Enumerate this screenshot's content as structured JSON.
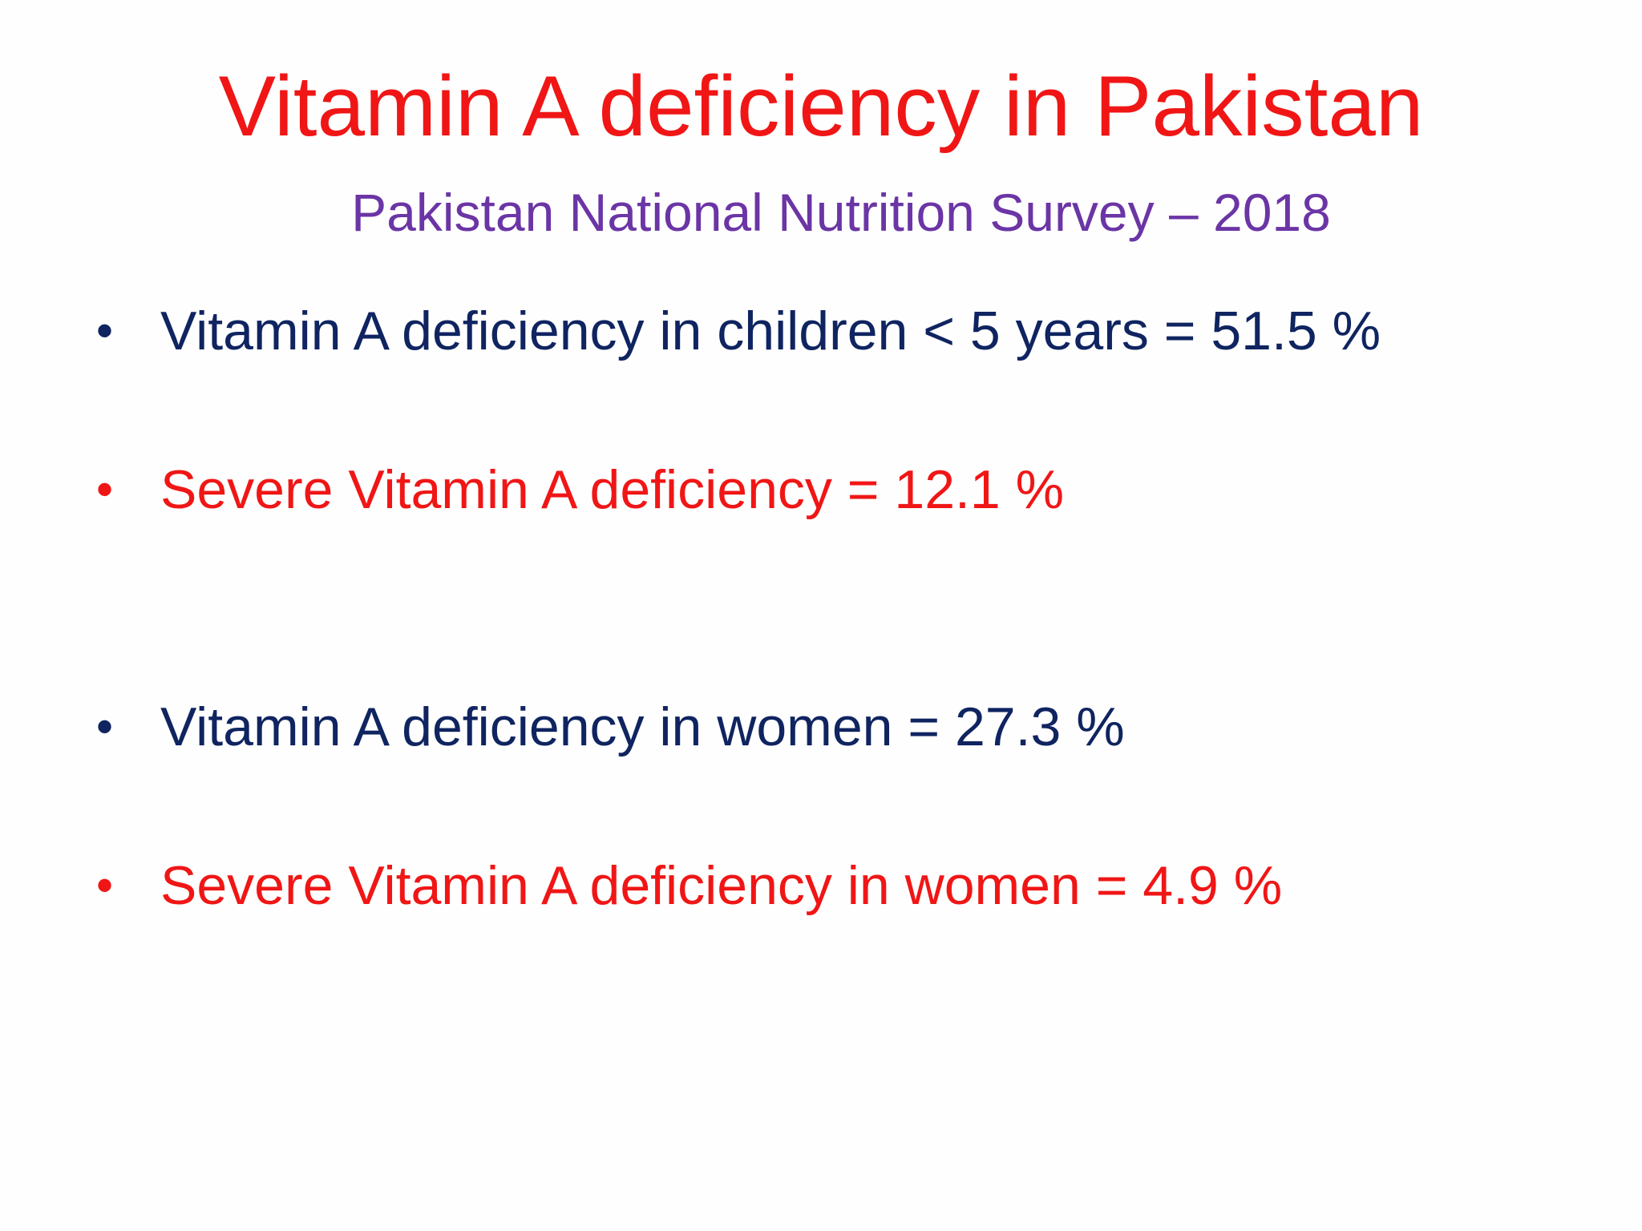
{
  "colors": {
    "title": "#f01616",
    "subtitle": "#6b35a5",
    "navy": "#0f2460",
    "red": "#f01616"
  },
  "slide": {
    "title": "Vitamin A deficiency in Pakistan",
    "subtitle": "Pakistan National Nutrition Survey – 2018",
    "bullet_glyph": "•",
    "bullets": [
      {
        "text": "Vitamin A deficiency in children < 5 years = 51.5 %",
        "color": "#0f2460"
      },
      {
        "text": "Severe Vitamin A deficiency = 12.1 %",
        "color": "#f01616"
      },
      {
        "text": "Vitamin A deficiency in women = 27.3 %",
        "color": "#0f2460"
      },
      {
        "text": "Severe Vitamin A deficiency in women = 4.9 %",
        "color": "#f01616"
      }
    ]
  }
}
